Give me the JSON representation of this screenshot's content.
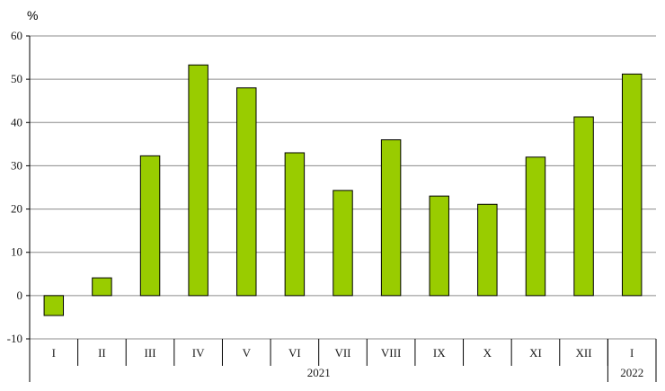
{
  "chart_data": {
    "type": "bar",
    "unit_label": "%",
    "categories": [
      "I",
      "II",
      "III",
      "IV",
      "V",
      "VI",
      "VII",
      "VIII",
      "IX",
      "X",
      "XI",
      "XII",
      "I"
    ],
    "values": [
      -4.6,
      4.1,
      32.3,
      53.3,
      48.0,
      33.0,
      24.3,
      36.0,
      23.0,
      21.1,
      32.0,
      41.3,
      51.2
    ],
    "groups": [
      {
        "label": "2021",
        "count": 12
      },
      {
        "label": "2022",
        "count": 1
      }
    ],
    "ylim": [
      -10,
      60
    ],
    "yticks": [
      "-10",
      "0",
      "10",
      "20",
      "30",
      "40",
      "50",
      "60"
    ],
    "bar_color": "#99cc00",
    "bar_edge_color": "#000000",
    "grid": true,
    "title": "",
    "xlabel": "",
    "ylabel": ""
  }
}
